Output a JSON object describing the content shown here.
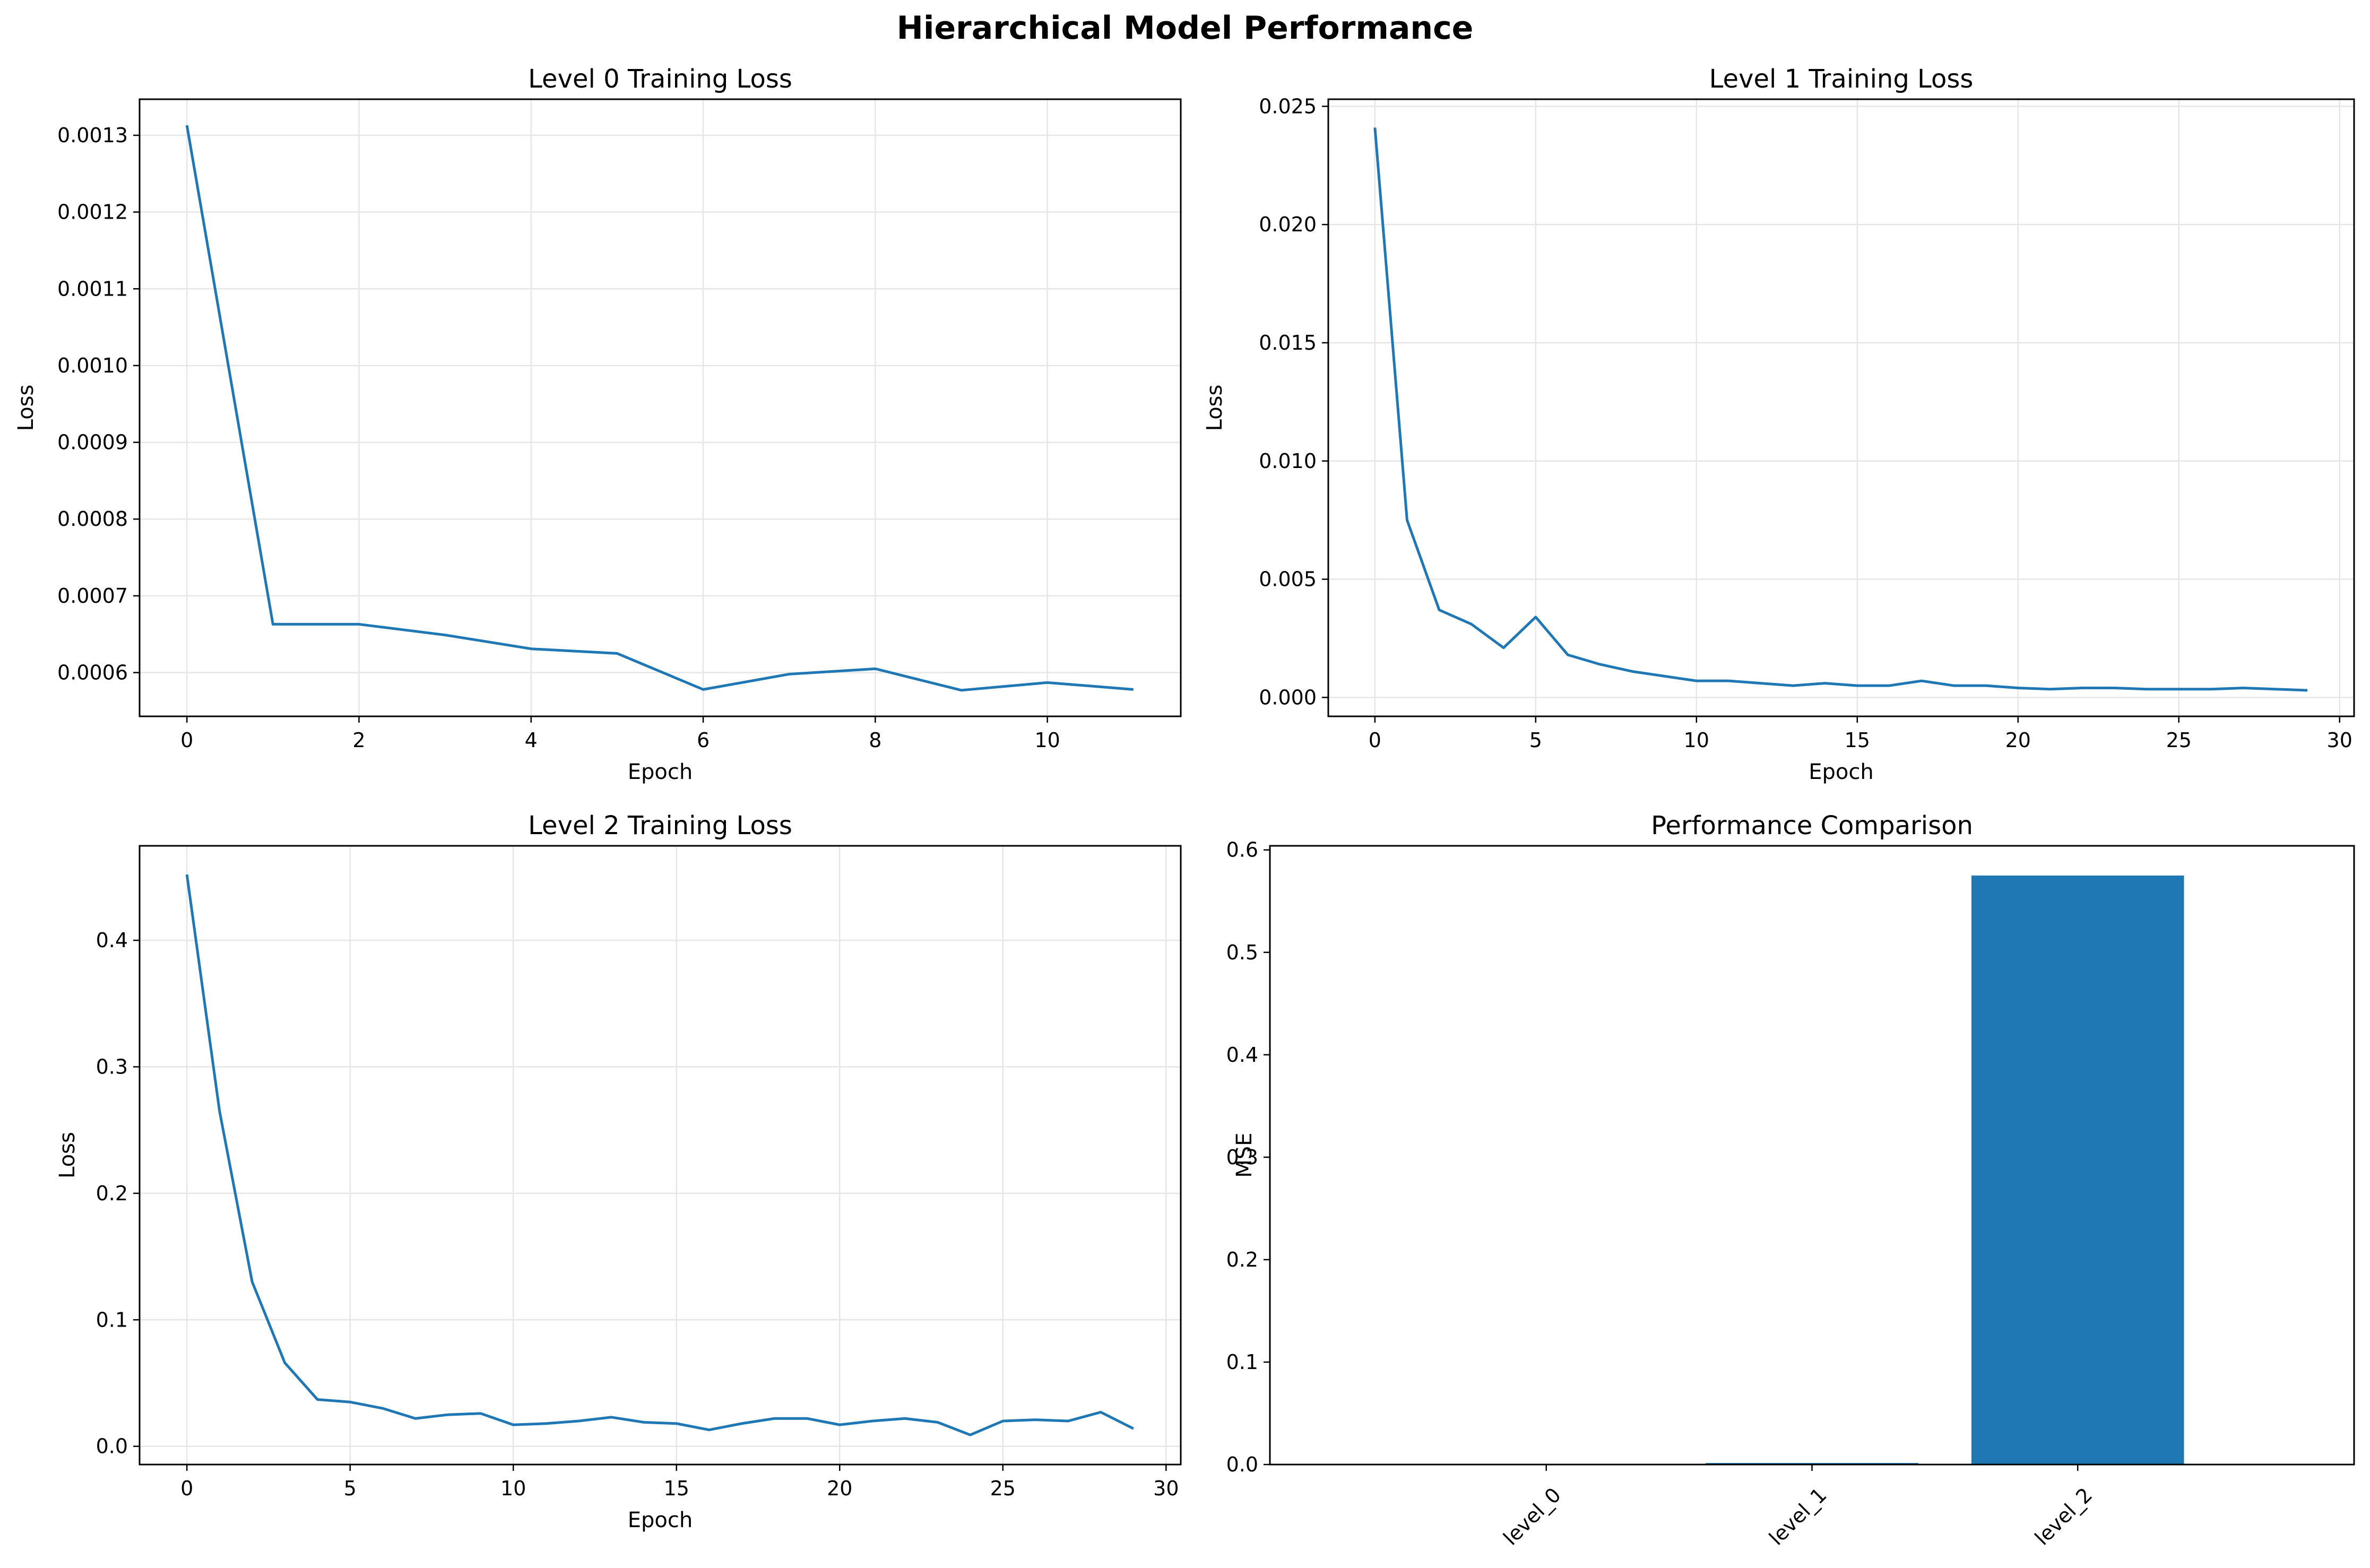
{
  "figure": {
    "suptitle": "Hierarchical Model Performance"
  },
  "colors": {
    "line": "#1f77b4",
    "bar": "#1f77b4",
    "grid": "#e6e6e6",
    "axis": "#000000"
  },
  "chart_data": [
    {
      "type": "line",
      "title": "Level 0 Training Loss",
      "xlabel": "Epoch",
      "ylabel": "Loss",
      "xlim": [
        -0.55,
        11.55
      ],
      "ylim": [
        0.000543,
        0.001347
      ],
      "xticks": [
        0,
        2,
        4,
        6,
        8,
        10
      ],
      "yticks": [
        0.0006,
        0.0007,
        0.0008,
        0.0009,
        0.001,
        0.0011,
        0.0012,
        0.0013
      ],
      "ytick_labels": [
        "0.0006",
        "0.0007",
        "0.0008",
        "0.0009",
        "0.0010",
        "0.0011",
        "0.0012",
        "0.0013"
      ],
      "grid": true,
      "series": [
        {
          "x": [
            0,
            1,
            2,
            3,
            4,
            5,
            6,
            7,
            8,
            9,
            10,
            11
          ],
          "values": [
            0.001313,
            0.000663,
            0.000663,
            0.000649,
            0.000631,
            0.000625,
            0.000578,
            0.000598,
            0.000605,
            0.000577,
            0.000587,
            0.000578
          ]
        }
      ]
    },
    {
      "type": "line",
      "title": "Level 1 Training Loss",
      "xlabel": "Epoch",
      "ylabel": "Loss",
      "xlim": [
        -1.45,
        30.45
      ],
      "ylim": [
        -0.0008,
        0.0253
      ],
      "xticks": [
        0,
        5,
        10,
        15,
        20,
        25,
        30
      ],
      "yticks": [
        0.0,
        0.005,
        0.01,
        0.015,
        0.02,
        0.025
      ],
      "ytick_labels": [
        "0.000",
        "0.005",
        "0.010",
        "0.015",
        "0.020",
        "0.025"
      ],
      "grid": true,
      "series": [
        {
          "x": [
            0,
            1,
            2,
            3,
            4,
            5,
            6,
            7,
            8,
            9,
            10,
            11,
            12,
            13,
            14,
            15,
            16,
            17,
            18,
            19,
            20,
            21,
            22,
            23,
            24,
            25,
            26,
            27,
            28,
            29
          ],
          "values": [
            0.0241,
            0.0075,
            0.0037,
            0.0031,
            0.0021,
            0.0034,
            0.0018,
            0.0014,
            0.0011,
            0.0009,
            0.0007,
            0.0007,
            0.0006,
            0.0005,
            0.0006,
            0.0005,
            0.0005,
            0.0007,
            0.0005,
            0.0005,
            0.0004,
            0.00035,
            0.0004,
            0.0004,
            0.00035,
            0.00035,
            0.00035,
            0.0004,
            0.00035,
            0.0003
          ]
        }
      ]
    },
    {
      "type": "line",
      "title": "Level 2 Training Loss",
      "xlabel": "Epoch",
      "ylabel": "Loss",
      "xlim": [
        -1.45,
        30.45
      ],
      "ylim": [
        -0.0144,
        0.4747
      ],
      "xticks": [
        0,
        5,
        10,
        15,
        20,
        25,
        30
      ],
      "yticks": [
        0.0,
        0.1,
        0.2,
        0.3,
        0.4
      ],
      "ytick_labels": [
        "0.0",
        "0.1",
        "0.2",
        "0.3",
        "0.4"
      ],
      "grid": true,
      "series": [
        {
          "x": [
            0,
            1,
            2,
            3,
            4,
            5,
            6,
            7,
            8,
            9,
            10,
            11,
            12,
            13,
            14,
            15,
            16,
            17,
            18,
            19,
            20,
            21,
            22,
            23,
            24,
            25,
            26,
            27,
            28,
            29
          ],
          "values": [
            0.452,
            0.265,
            0.13,
            0.066,
            0.037,
            0.035,
            0.03,
            0.022,
            0.025,
            0.026,
            0.017,
            0.018,
            0.02,
            0.023,
            0.019,
            0.018,
            0.013,
            0.018,
            0.022,
            0.022,
            0.017,
            0.02,
            0.022,
            0.019,
            0.009,
            0.02,
            0.021,
            0.02,
            0.027,
            0.014
          ]
        }
      ]
    },
    {
      "type": "bar",
      "title": "Performance Comparison",
      "xlabel": "",
      "ylabel": "MSE",
      "categories": [
        "level_0",
        "level_1",
        "level_2"
      ],
      "values": [
        0.0006,
        0.0015,
        0.575
      ],
      "ylim": [
        0.0,
        0.604
      ],
      "yticks": [
        0.0,
        0.1,
        0.2,
        0.3,
        0.4,
        0.5,
        0.6
      ],
      "ytick_labels": [
        "0.0",
        "0.1",
        "0.2",
        "0.3",
        "0.4",
        "0.5",
        "0.6"
      ],
      "grid": false
    }
  ]
}
